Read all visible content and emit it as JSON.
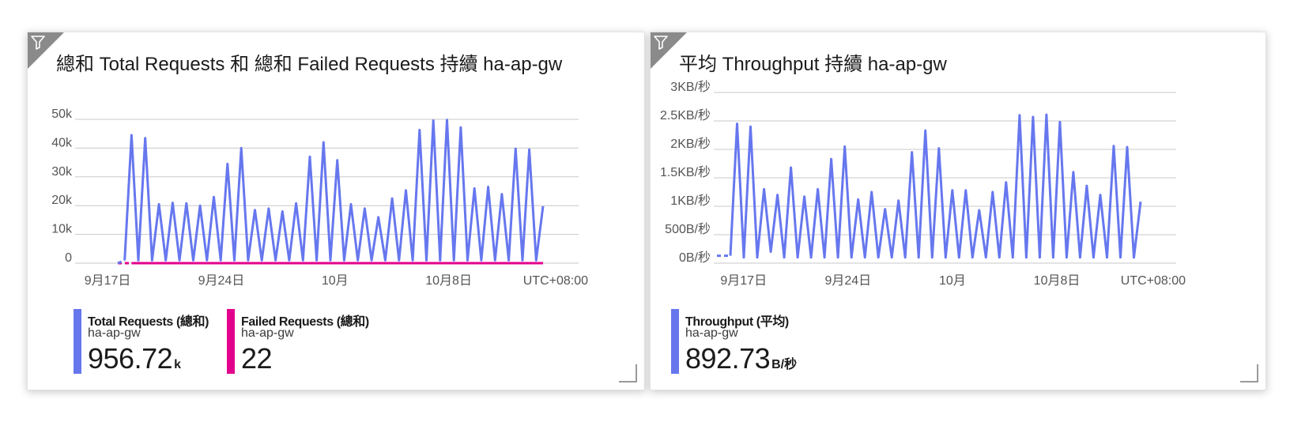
{
  "colors": {
    "requests": "#6677ee",
    "failed": "#e3008c",
    "throughput": "#6677ee",
    "grid": "#c8c8c8",
    "axis_text": "#555555",
    "filter_corner": "#8a8a8a"
  },
  "icons": {
    "filter": "filter-icon",
    "resize": "resize-grip-icon"
  },
  "left_card": {
    "title": "總和 Total Requests 和 總和 Failed Requests 持續 ha-ap-gw",
    "legend": [
      {
        "name": "Total Requests (總和)",
        "resource": "ha-ap-gw",
        "value": "956.72",
        "unit": "k",
        "color": "#6677ee"
      },
      {
        "name": "Failed Requests (總和)",
        "resource": "ha-ap-gw",
        "value": "22",
        "unit": "",
        "color": "#e3008c"
      }
    ]
  },
  "right_card": {
    "title": "平均 Throughput 持續 ha-ap-gw",
    "legend": [
      {
        "name": "Throughput (平均)",
        "resource": "ha-ap-gw",
        "value": "892.73",
        "unit": "B/秒",
        "color": "#6677ee"
      }
    ]
  },
  "chart_data": [
    {
      "type": "line",
      "title": "總和 Total Requests 和 總和 Failed Requests 持續 ha-ap-gw",
      "x_start": "2023-09-15",
      "x_end": "2023-10-16",
      "x_ticks": [
        "9月17日",
        "9月24日",
        "10月",
        "10月8日"
      ],
      "x_tick_dates": [
        "2023-09-17",
        "2023-09-24",
        "2023-10-01",
        "2023-10-08"
      ],
      "timezone_label": "UTC+08:00",
      "y_ticks": [
        "0",
        "10k",
        "20k",
        "30k",
        "40k",
        "50k"
      ],
      "y_tick_values": [
        0,
        10000,
        20000,
        30000,
        40000,
        50000
      ],
      "ylim": [
        0,
        50000
      ],
      "grid": true,
      "legend_position": "bottom-left",
      "series": [
        {
          "name": "Total Requests (總和)",
          "color": "#6677ee",
          "dashed_until_index": 1,
          "values": [
            0,
            1000,
            44500,
            1000,
            43500,
            1000,
            20500,
            1000,
            21000,
            1000,
            20800,
            1000,
            20000,
            1000,
            23000,
            1000,
            34500,
            1000,
            40000,
            1000,
            18500,
            1000,
            19000,
            1000,
            18000,
            1000,
            20800,
            1000,
            37000,
            1000,
            42000,
            1000,
            35800,
            1000,
            20500,
            1000,
            19000,
            1000,
            16000,
            1000,
            22500,
            1000,
            25300,
            1000,
            46300,
            1000,
            49600,
            1000,
            49800,
            1000,
            47200,
            1000,
            26000,
            1000,
            26500,
            1000,
            24000,
            1000,
            39800,
            1000,
            39500,
            1000,
            19800
          ]
        },
        {
          "name": "Failed Requests (總和)",
          "color": "#e3008c",
          "dashed_until_index": 2,
          "values": [
            0,
            0,
            0,
            0,
            0,
            0,
            0,
            0,
            0,
            0,
            0,
            0,
            0,
            0,
            0,
            0,
            0,
            0,
            0,
            0,
            0,
            0,
            0,
            0,
            0,
            0,
            0,
            0,
            0,
            0,
            0,
            0,
            0,
            0,
            0,
            0,
            0,
            0,
            0,
            0,
            0,
            0,
            0,
            0,
            0,
            0,
            0,
            0,
            0,
            0,
            0,
            0,
            0,
            0,
            0,
            0,
            0,
            0,
            0,
            0,
            0,
            0,
            0
          ]
        }
      ]
    },
    {
      "type": "line",
      "title": "平均 Throughput 持續 ha-ap-gw",
      "x_start": "2023-09-15",
      "x_end": "2023-10-16",
      "x_ticks": [
        "9月17日",
        "9月24日",
        "10月",
        "10月8日"
      ],
      "x_tick_dates": [
        "2023-09-17",
        "2023-09-24",
        "2023-10-01",
        "2023-10-08"
      ],
      "timezone_label": "UTC+08:00",
      "y_ticks": [
        "0B/秒",
        "500B/秒",
        "1KB/秒",
        "1.5KB/秒",
        "2KB/秒",
        "2.5KB/秒",
        "3KB/秒"
      ],
      "y_tick_values": [
        0,
        500,
        1000,
        1500,
        2000,
        2500,
        3000
      ],
      "ylim": [
        0,
        3000
      ],
      "grid": true,
      "legend_position": "bottom-left",
      "series": [
        {
          "name": "Throughput (平均)",
          "color": "#6677ee",
          "dashed_until_index": 2,
          "values": [
            130,
            130,
            130,
            2450,
            100,
            2400,
            100,
            1300,
            200,
            1200,
            100,
            1680,
            100,
            1170,
            100,
            1300,
            100,
            1830,
            100,
            2050,
            100,
            1120,
            100,
            1250,
            100,
            950,
            100,
            1100,
            100,
            1950,
            100,
            2330,
            100,
            2020,
            100,
            1280,
            100,
            1280,
            100,
            930,
            100,
            1250,
            100,
            1420,
            100,
            2600,
            100,
            2570,
            100,
            2610,
            100,
            2480,
            100,
            1600,
            100,
            1360,
            100,
            1200,
            100,
            2060,
            100,
            2040,
            100,
            1080
          ]
        }
      ]
    }
  ]
}
